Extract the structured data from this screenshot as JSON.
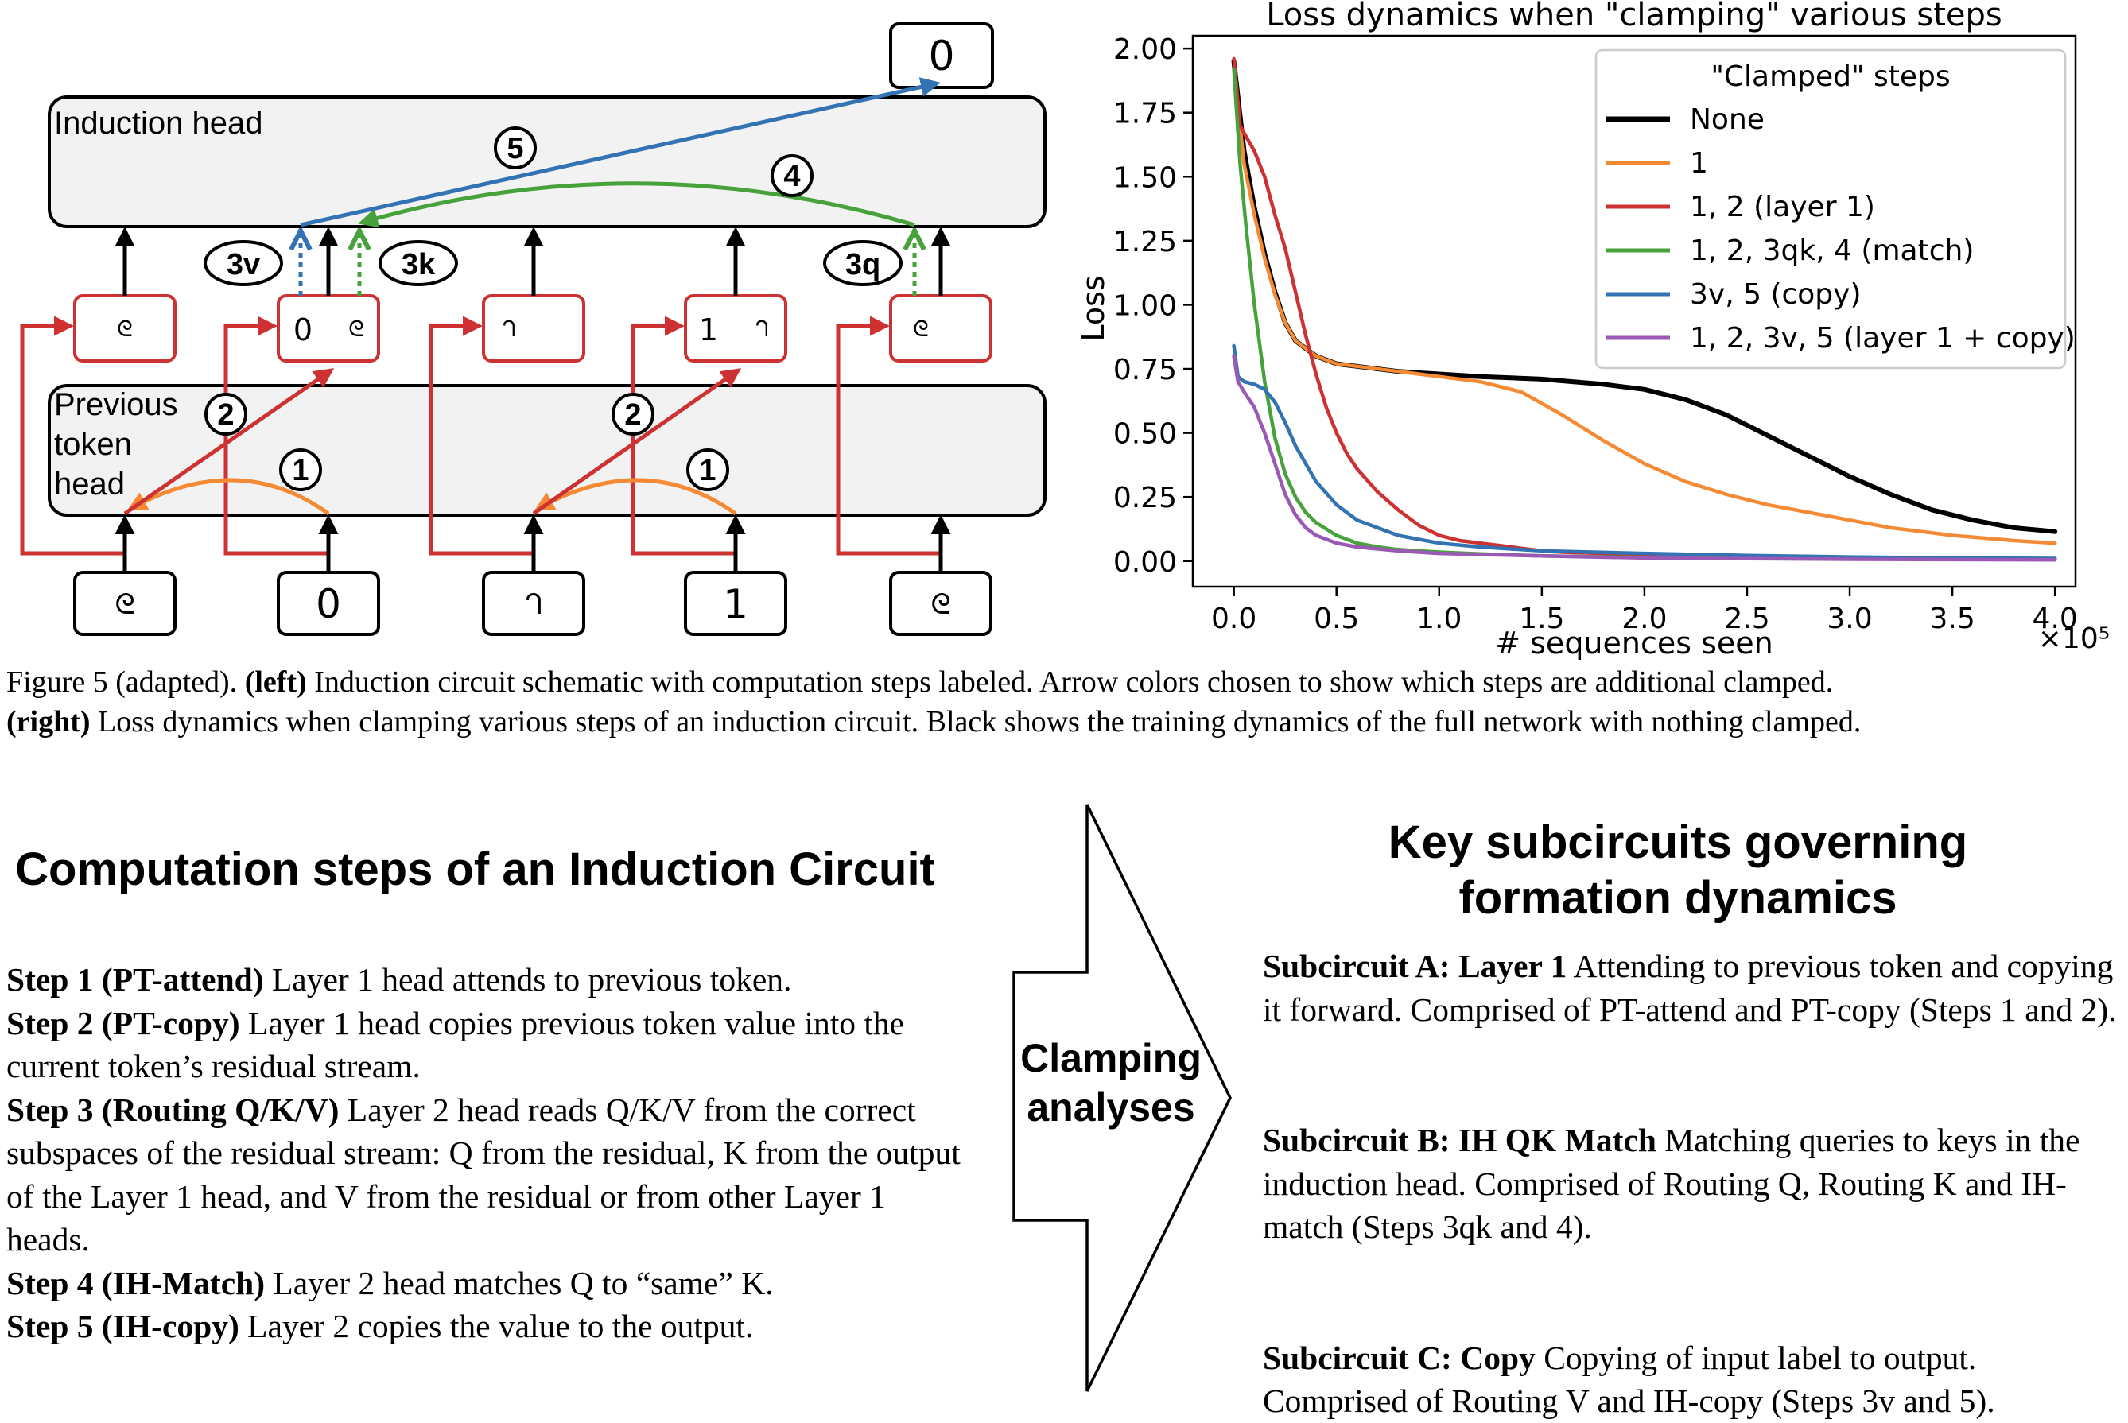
{
  "schematic": {
    "output_token": "0",
    "induction_head_label": "Induction head",
    "prev_head_label_lines": [
      "Previous",
      "token",
      "head"
    ],
    "input_tokens": [
      "ᘓ",
      "0",
      "ᘃ",
      "1",
      "ᘓ"
    ],
    "residual_boxes": [
      {
        "a": "",
        "b": "ᘓ"
      },
      {
        "a": "0",
        "b": "ᘓ"
      },
      {
        "a": "",
        "b": "ᘃ"
      },
      {
        "a": "1",
        "b": "ᘃ"
      },
      {
        "a": "",
        "b": "ᘓ"
      }
    ],
    "step_markers": [
      "1",
      "2",
      "1",
      "2",
      "4",
      "5"
    ],
    "routing_labels": [
      "3v",
      "3k",
      "3q"
    ],
    "colors": {
      "pt_attend": "#f58a35",
      "pt_copy": "#cd3131",
      "match": "#48a23b",
      "copy": "#3373b3",
      "box_fill": "#f2f2f2"
    }
  },
  "chart_data": {
    "type": "line",
    "title": "Loss dynamics when \"clamping\" various steps",
    "xlabel": "# sequences seen",
    "ylabel": "Loss",
    "x_multiplier_label": "×10⁵",
    "xlim": [
      -0.2,
      4.1
    ],
    "ylim": [
      -0.1,
      2.05
    ],
    "xticks": [
      "0.0",
      "0.5",
      "1.0",
      "1.5",
      "2.0",
      "2.5",
      "3.0",
      "3.5",
      "4.0"
    ],
    "yticks": [
      "0.00",
      "0.25",
      "0.50",
      "0.75",
      "1.00",
      "1.25",
      "1.50",
      "1.75",
      "2.00"
    ],
    "legend_title": "\"Clamped\" steps",
    "legend_position": "top-right",
    "grid": false,
    "series": [
      {
        "name": "None",
        "color": "#000000",
        "x": [
          0,
          0.05,
          0.1,
          0.15,
          0.2,
          0.25,
          0.3,
          0.4,
          0.5,
          0.6,
          0.8,
          1.0,
          1.2,
          1.5,
          1.8,
          2.0,
          2.2,
          2.4,
          2.6,
          2.8,
          3.0,
          3.2,
          3.4,
          3.6,
          3.8,
          4.0
        ],
        "y": [
          1.95,
          1.6,
          1.38,
          1.2,
          1.05,
          0.93,
          0.86,
          0.8,
          0.77,
          0.76,
          0.74,
          0.73,
          0.72,
          0.71,
          0.69,
          0.67,
          0.63,
          0.57,
          0.49,
          0.41,
          0.33,
          0.26,
          0.2,
          0.16,
          0.13,
          0.115
        ]
      },
      {
        "name": "1",
        "color": "#f58a35",
        "x": [
          0,
          0.05,
          0.1,
          0.15,
          0.2,
          0.25,
          0.3,
          0.4,
          0.5,
          0.6,
          0.8,
          1.0,
          1.2,
          1.4,
          1.6,
          1.8,
          2.0,
          2.2,
          2.4,
          2.6,
          2.8,
          3.0,
          3.2,
          3.5,
          3.8,
          4.0
        ],
        "y": [
          1.92,
          1.55,
          1.35,
          1.18,
          1.04,
          0.93,
          0.86,
          0.8,
          0.77,
          0.76,
          0.74,
          0.72,
          0.7,
          0.66,
          0.57,
          0.47,
          0.38,
          0.31,
          0.26,
          0.22,
          0.19,
          0.16,
          0.13,
          0.1,
          0.08,
          0.07
        ]
      },
      {
        "name": "1, 2 (layer 1)",
        "color": "#cd3131",
        "x": [
          0,
          0.03,
          0.05,
          0.1,
          0.15,
          0.2,
          0.25,
          0.3,
          0.35,
          0.4,
          0.45,
          0.5,
          0.55,
          0.6,
          0.7,
          0.8,
          0.9,
          1.0,
          1.1,
          1.2,
          1.3,
          1.4,
          1.5,
          1.6,
          1.8,
          2.0,
          2.5,
          3.0,
          3.5,
          4.0
        ],
        "y": [
          1.96,
          1.7,
          1.67,
          1.6,
          1.5,
          1.35,
          1.22,
          1.05,
          0.88,
          0.73,
          0.6,
          0.5,
          0.42,
          0.36,
          0.27,
          0.2,
          0.14,
          0.1,
          0.08,
          0.07,
          0.06,
          0.05,
          0.04,
          0.035,
          0.03,
          0.025,
          0.018,
          0.012,
          0.01,
          0.008
        ]
      },
      {
        "name": "1, 2, 3qk, 4 (match)",
        "color": "#48a23b",
        "x": [
          0,
          0.03,
          0.06,
          0.1,
          0.15,
          0.2,
          0.25,
          0.3,
          0.35,
          0.4,
          0.5,
          0.6,
          0.7,
          0.8,
          1.0,
          1.2,
          1.5,
          2.0,
          2.5,
          3.0,
          4.0
        ],
        "y": [
          1.92,
          1.55,
          1.3,
          1.0,
          0.7,
          0.48,
          0.34,
          0.25,
          0.19,
          0.15,
          0.1,
          0.07,
          0.055,
          0.045,
          0.035,
          0.028,
          0.02,
          0.014,
          0.01,
          0.008,
          0.006
        ]
      },
      {
        "name": "3v, 5 (copy)",
        "color": "#3373b3",
        "x": [
          0,
          0.02,
          0.05,
          0.1,
          0.15,
          0.2,
          0.25,
          0.3,
          0.4,
          0.5,
          0.6,
          0.8,
          1.0,
          1.2,
          1.5,
          2.0,
          2.5,
          3.0,
          3.5,
          4.0
        ],
        "y": [
          0.84,
          0.72,
          0.7,
          0.69,
          0.67,
          0.62,
          0.54,
          0.45,
          0.31,
          0.22,
          0.16,
          0.1,
          0.07,
          0.055,
          0.04,
          0.03,
          0.022,
          0.016,
          0.012,
          0.01
        ]
      },
      {
        "name": "1, 2, 3v, 5 (layer 1 + copy)",
        "color": "#9b59b6",
        "x": [
          0,
          0.02,
          0.05,
          0.1,
          0.15,
          0.2,
          0.25,
          0.3,
          0.35,
          0.4,
          0.5,
          0.6,
          0.8,
          1.0,
          1.5,
          2.0,
          3.0,
          4.0
        ],
        "y": [
          0.8,
          0.7,
          0.66,
          0.6,
          0.5,
          0.38,
          0.26,
          0.18,
          0.13,
          0.1,
          0.07,
          0.055,
          0.04,
          0.03,
          0.02,
          0.012,
          0.007,
          0.005
        ]
      }
    ]
  },
  "caption": {
    "prefix": "Figure 5 (adapted). ",
    "left_bold": "(left)",
    "left_text": " Induction circuit schematic with computation steps labeled. Arrow colors chosen to show which steps are additional clamped.",
    "right_bold": "(right)",
    "right_text": " Loss dynamics when clamping various steps of an induction circuit. Black shows the training dynamics of the full network with nothing clamped."
  },
  "steps_section": {
    "title": "Computation steps of an Induction Circuit",
    "steps": [
      {
        "bold": "Step 1 (PT-attend)",
        "text": " Layer 1 head attends to previous token."
      },
      {
        "bold": "Step 2 (PT-copy)",
        "text": " Layer 1 head copies previous token value into the current token’s residual stream."
      },
      {
        "bold": "Step 3 (Routing Q/K/V)",
        "text": " Layer 2 head reads Q/K/V from the correct subspaces of the residual stream: Q from the residual, K from the output of the Layer 1 head, and V from the residual or from other Layer 1 heads."
      },
      {
        "bold": "Step 4 (IH-Match)",
        "text": " Layer 2 head matches Q to “same” K."
      },
      {
        "bold": "Step 5 (IH-copy)",
        "text": " Layer 2 copies the value to the output."
      }
    ]
  },
  "clamping": {
    "line1": "Clamping",
    "line2": "analyses"
  },
  "subcircuits_section": {
    "title_line1": "Key subcircuits governing",
    "title_line2": "formation dynamics",
    "items": [
      {
        "bold": "Subcircuit A: Layer 1",
        "text": " Attending to previous token and copying it forward. Comprised of PT-attend and PT-copy (Steps 1 and 2)."
      },
      {
        "bold": "Subcircuit B: IH QK Match",
        "text": " Matching queries to keys in the induction head. Comprised of Routing Q, Routing K and IH-match (Steps 3qk and 4)."
      },
      {
        "bold": "Subcircuit C: Copy",
        "text": " Copying of input label to output. Comprised of Routing V and IH-copy (Steps 3v and 5)."
      }
    ]
  }
}
